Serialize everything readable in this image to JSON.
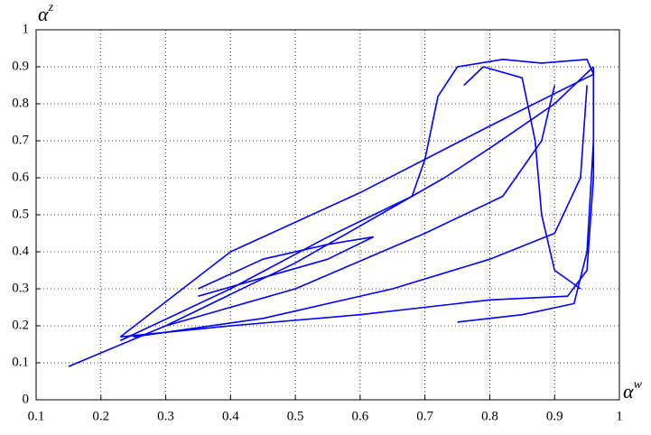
{
  "chart_data": {
    "type": "line",
    "xlabel": [
      "α",
      "w"
    ],
    "ylabel": [
      "α",
      "z"
    ],
    "xlim": [
      0.1,
      1
    ],
    "ylim": [
      0,
      1
    ],
    "xticks": [
      0.1,
      0.2,
      0.3,
      0.4,
      0.5,
      0.6,
      0.7,
      0.8,
      0.9,
      1
    ],
    "yticks": [
      0,
      0.1,
      0.2,
      0.3,
      0.4,
      0.5,
      0.6,
      0.7,
      0.8,
      0.9,
      1
    ],
    "grid": true,
    "series": [
      {
        "color": "#0000ff",
        "x": [
          0.15,
          0.3,
          0.5,
          0.68,
          0.7,
          0.72,
          0.75,
          0.82,
          0.88,
          0.95,
          0.96,
          0.8,
          0.6,
          0.4,
          0.23
        ],
        "values": [
          0.09,
          0.2,
          0.37,
          0.55,
          0.65,
          0.82,
          0.9,
          0.92,
          0.91,
          0.92,
          0.88,
          0.74,
          0.56,
          0.4,
          0.17
        ]
      },
      {
        "color": "#0000ff",
        "x": [
          0.23,
          0.4,
          0.55,
          0.68,
          0.73,
          0.8,
          0.9,
          0.96
        ],
        "values": [
          0.16,
          0.3,
          0.44,
          0.55,
          0.6,
          0.68,
          0.8,
          0.9
        ]
      },
      {
        "color": "#0000ff",
        "x": [
          0.23,
          0.4,
          0.6,
          0.8,
          0.92,
          0.95,
          0.96,
          0.96
        ],
        "values": [
          0.17,
          0.2,
          0.23,
          0.27,
          0.28,
          0.35,
          0.6,
          0.9
        ]
      },
      {
        "color": "#0000ff",
        "x": [
          0.25,
          0.45,
          0.65,
          0.8,
          0.9,
          0.94,
          0.95
        ],
        "values": [
          0.17,
          0.22,
          0.3,
          0.38,
          0.45,
          0.6,
          0.85
        ]
      },
      {
        "color": "#0000ff",
        "x": [
          0.3,
          0.5,
          0.7,
          0.82,
          0.88,
          0.9
        ],
        "values": [
          0.2,
          0.3,
          0.45,
          0.55,
          0.7,
          0.85
        ]
      },
      {
        "color": "#0000ff",
        "x": [
          0.35,
          0.45,
          0.55,
          0.62,
          0.55,
          0.45,
          0.35
        ],
        "values": [
          0.28,
          0.33,
          0.38,
          0.44,
          0.42,
          0.38,
          0.3
        ]
      },
      {
        "color": "#0000ff",
        "x": [
          0.75,
          0.85,
          0.93,
          0.95,
          0.96,
          0.96
        ],
        "values": [
          0.21,
          0.23,
          0.26,
          0.4,
          0.7,
          0.9
        ]
      },
      {
        "color": "#0000ff",
        "x": [
          0.76,
          0.79,
          0.85,
          0.87,
          0.88,
          0.9,
          0.94
        ],
        "values": [
          0.85,
          0.9,
          0.87,
          0.7,
          0.5,
          0.35,
          0.3
        ]
      }
    ]
  }
}
